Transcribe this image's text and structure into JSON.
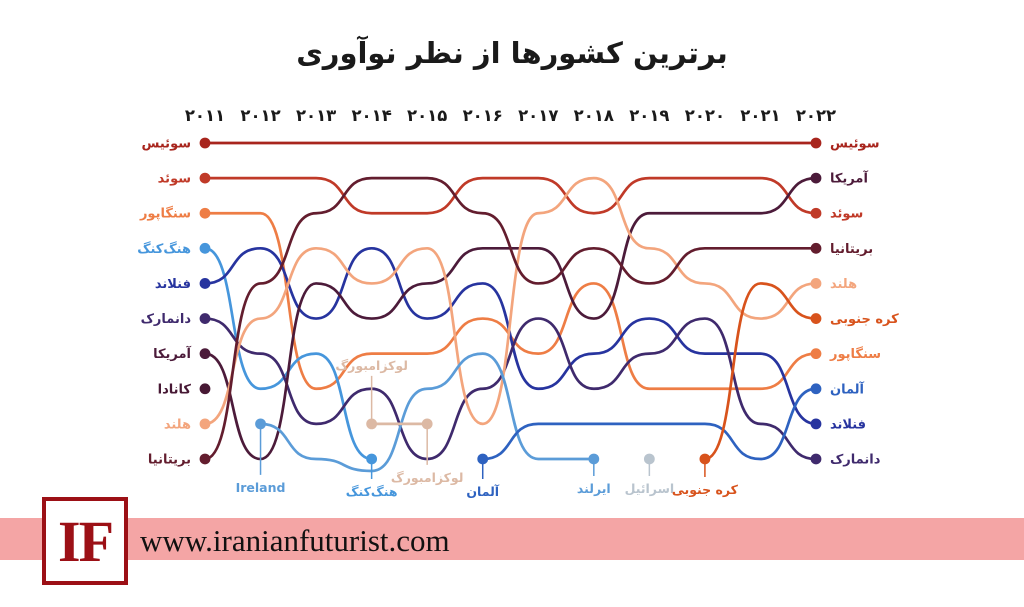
{
  "title": "برترین کشورها از نظر نوآوری",
  "footer": {
    "logo": "IF",
    "url": "www.iranianfuturist.com"
  },
  "colors": {
    "footer_band": "#f4a5a5",
    "logo_red": "#9c1016",
    "title_text": "#1a1a1a"
  },
  "chart_data": {
    "type": "line",
    "subtype": "bump-rank-chart",
    "title": "برترین کشورها از نظر نوآوری",
    "years": [
      "۲۰۱۱",
      "۲۰۱۲",
      "۲۰۱۳",
      "۲۰۱۴",
      "۲۰۱۵",
      "۲۰۱۶",
      "۲۰۱۷",
      "۲۰۱۸",
      "۲۰۱۹",
      "۲۰۲۰",
      "۲۰۲۱",
      "۲۰۲۲"
    ],
    "years_en": [
      2011,
      2012,
      2013,
      2014,
      2015,
      2016,
      2017,
      2018,
      2019,
      2020,
      2021,
      2022
    ],
    "rank_axis": {
      "top": 1,
      "bottom": 10,
      "note": "rank 1 at top; rank > 10 = out of top ten"
    },
    "series": [
      {
        "name": "switzerland",
        "label": "سوئیس",
        "color": "#a8251d",
        "ranks": [
          1,
          1,
          1,
          1,
          1,
          1,
          1,
          1,
          1,
          1,
          1,
          1
        ]
      },
      {
        "name": "sweden",
        "label": "سوئد",
        "color": "#c03a28",
        "ranks": [
          2,
          2,
          2,
          3,
          3,
          2,
          2,
          3,
          2,
          2,
          2,
          3
        ]
      },
      {
        "name": "singapore",
        "label": "سنگاپور",
        "color": "#ee7d45",
        "ranks": [
          3,
          3,
          8,
          7,
          7,
          6,
          7,
          5,
          8,
          8,
          8,
          7
        ]
      },
      {
        "name": "hong-kong",
        "label": "هنگ‌کنگ",
        "color": "#4696dc",
        "ranks": [
          4,
          8,
          7,
          10,
          null,
          null,
          null,
          null,
          null,
          null,
          null,
          null
        ]
      },
      {
        "name": "finland",
        "label": "فنلاند",
        "color": "#27349f",
        "ranks": [
          5,
          4,
          6,
          4,
          6,
          5,
          8,
          7,
          6,
          7,
          7,
          9
        ]
      },
      {
        "name": "denmark",
        "label": "دانمارک",
        "color": "#3f2a6d",
        "ranks": [
          6,
          7,
          9,
          8,
          10,
          8,
          6,
          8,
          7,
          6,
          9,
          10
        ]
      },
      {
        "name": "usa",
        "label": "آمریکا",
        "color": "#4c1b3a",
        "ranks": [
          7,
          10,
          5,
          6,
          5,
          4,
          4,
          6,
          3,
          3,
          3,
          2
        ]
      },
      {
        "name": "canada",
        "label": "کانادا",
        "color": "#471834",
        "ranks": [
          8,
          null,
          null,
          null,
          null,
          null,
          null,
          null,
          null,
          null,
          null,
          null
        ]
      },
      {
        "name": "netherlands",
        "label": "هلند",
        "color": "#f3a57d",
        "ranks": [
          9,
          6,
          4,
          5,
          4,
          9,
          3,
          2,
          4,
          5,
          6,
          5
        ]
      },
      {
        "name": "uk",
        "label": "بریتانیا",
        "color": "#631d2e",
        "ranks": [
          10,
          5,
          3,
          2,
          2,
          3,
          5,
          4,
          5,
          4,
          4,
          4
        ]
      },
      {
        "name": "ireland",
        "label": "ایرلند",
        "color": "#5b9cd8",
        "ranks": [
          null,
          9,
          10,
          11,
          8,
          7,
          10,
          10,
          null,
          null,
          null,
          null
        ]
      },
      {
        "name": "luxembourg",
        "label": "لوکزامبورگ",
        "color": "#dcb9a4",
        "ranks": [
          null,
          null,
          null,
          9,
          9,
          null,
          null,
          null,
          null,
          null,
          null,
          null
        ]
      },
      {
        "name": "germany",
        "label": "آلمان",
        "color": "#2e62c0",
        "ranks": [
          null,
          null,
          null,
          null,
          null,
          10,
          9,
          9,
          9,
          9,
          10,
          8
        ]
      },
      {
        "name": "israel",
        "label": "اسرائیل",
        "color": "#b9c4ce",
        "ranks": [
          null,
          null,
          null,
          null,
          null,
          null,
          null,
          null,
          10,
          null,
          null,
          null
        ]
      },
      {
        "name": "south-korea",
        "label": "کره جنوبی",
        "color": "#d8531c",
        "ranks": [
          null,
          null,
          null,
          null,
          null,
          null,
          null,
          null,
          null,
          10,
          5,
          6
        ]
      }
    ],
    "annotations": [
      {
        "text": "Ireland",
        "year_index": 1,
        "rank": 9,
        "dy": 64,
        "color": "#5b9cd8"
      },
      {
        "text": "هنگ‌کنگ",
        "year_index": 3,
        "rank": 10,
        "dy": 33,
        "color": "#4696dc"
      },
      {
        "text": "لوکزامبورگ",
        "year_index": 3,
        "rank": 9,
        "dy": -58,
        "color": "#dcb9a4"
      },
      {
        "text": "لوکزامبورگ",
        "year_index": 4,
        "rank": 9,
        "dy": 54,
        "color": "#dcb9a4"
      },
      {
        "text": "آلمان",
        "year_index": 5,
        "rank": 10,
        "dy": 33,
        "color": "#2e62c0"
      },
      {
        "text": "ایرلند",
        "year_index": 7,
        "rank": 10,
        "dy": 30,
        "color": "#5b9cd8"
      },
      {
        "text": "اسرائیل",
        "year_index": 8,
        "rank": 10,
        "dy": 30,
        "color": "#b9c4ce"
      },
      {
        "text": "کره جنوبی",
        "year_index": 9,
        "rank": 10,
        "dy": 31,
        "color": "#d8531c"
      }
    ],
    "legend_position": "labels-at-line-ends",
    "grid": false
  }
}
